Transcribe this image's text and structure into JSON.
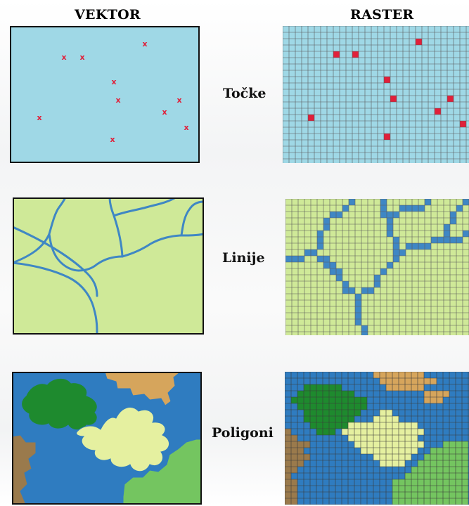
{
  "headers": {
    "vector": "VEKTOR",
    "raster": "RASTER"
  },
  "rows": [
    {
      "id": "points",
      "label": "Točke"
    },
    {
      "id": "lines",
      "label": "Linije"
    },
    {
      "id": "polygons",
      "label": "Poligoni"
    }
  ],
  "colors": {
    "points_bg": "#9fd8e6",
    "point_mark": "#e0203a",
    "lines_bg": "#cfe998",
    "line": "#3f87c4",
    "poly_blue": "#2f7cc0",
    "poly_tan": "#d6a55c",
    "poly_darkgreen": "#1e8a2e",
    "poly_palegreen": "#e5f0a0",
    "poly_brown": "#9a7a4c",
    "poly_lightgreen": "#74c560",
    "grid_line": "#5a5a5a"
  },
  "icons": {
    "point_symbol": "x-mark-icon"
  }
}
